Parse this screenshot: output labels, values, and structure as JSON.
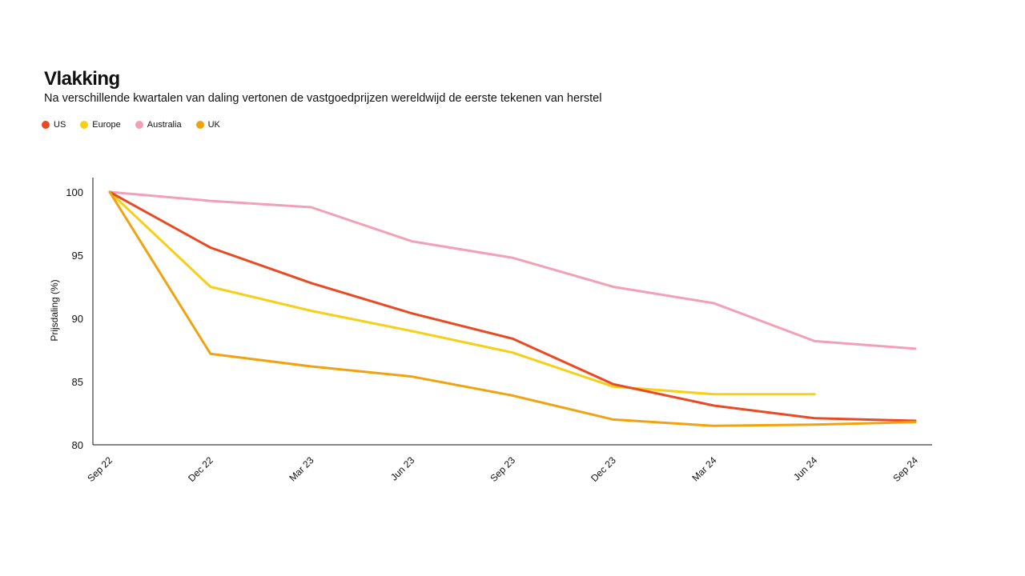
{
  "header": {
    "title": "Vlakking",
    "subtitle": "Na verschillende kwartalen van daling vertonen de vastgoedprijzen wereldwijd de eerste tekenen van herstel"
  },
  "legend": [
    {
      "label": "US",
      "color": "#e84a23"
    },
    {
      "label": "Europe",
      "color": "#f7cf16"
    },
    {
      "label": "Australia",
      "color": "#f2a0b8"
    },
    {
      "label": "UK",
      "color": "#f0a30f"
    }
  ],
  "chart_data": {
    "type": "line",
    "title": "Vlakking",
    "subtitle": "Na verschillende kwartalen van daling vertonen de vastgoedprijzen wereldwijd de eerste tekenen van herstel",
    "xlabel": "",
    "ylabel": "Prijsdaling (%)",
    "ylim": [
      80,
      100
    ],
    "yticks": [
      80,
      85,
      90,
      95,
      100
    ],
    "categories": [
      "Sep 22",
      "Dec 22",
      "Mar 23",
      "Jun 23",
      "Sep 23",
      "Dec 23",
      "Mar 24",
      "Jun 24",
      "Sep 24"
    ],
    "grid": false,
    "legend_position": "top-left",
    "series": [
      {
        "name": "Australia",
        "color": "#f2a0b8",
        "values": [
          100,
          99.3,
          98.8,
          96.1,
          94.8,
          92.5,
          91.2,
          88.2,
          87.6
        ]
      },
      {
        "name": "Europe",
        "color": "#f7cf16",
        "values": [
          100,
          92.5,
          90.6,
          89.0,
          87.3,
          84.6,
          84.0,
          84.0,
          null
        ]
      },
      {
        "name": "US",
        "color": "#e84a23",
        "values": [
          100,
          95.6,
          92.8,
          90.4,
          88.4,
          84.8,
          83.1,
          82.1,
          81.9
        ]
      },
      {
        "name": "UK",
        "color": "#f0a30f",
        "values": [
          100,
          87.2,
          86.2,
          85.4,
          83.9,
          82.0,
          81.5,
          81.6,
          81.8
        ]
      }
    ]
  }
}
